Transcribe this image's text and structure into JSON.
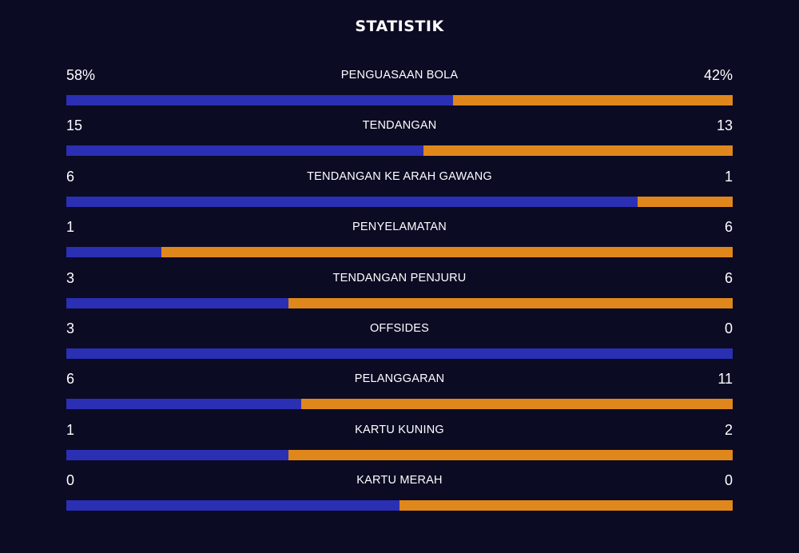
{
  "title": "STATISTIK",
  "colors": {
    "background": "#0b0b24",
    "home_bar": "#2b2fb3",
    "away_bar": "#e0871c"
  },
  "stats": [
    {
      "label": "PENGUASAAN BOLA",
      "home": "58%",
      "away": "42%",
      "home_share": 0.58
    },
    {
      "label": "TENDANGAN",
      "home": "15",
      "away": "13",
      "home_share": 0.536
    },
    {
      "label": "TENDANGAN KE ARAH GAWANG",
      "home": "6",
      "away": "1",
      "home_share": 0.857
    },
    {
      "label": "PENYELAMATAN",
      "home": "1",
      "away": "6",
      "home_share": 0.143
    },
    {
      "label": "TENDANGAN PENJURU",
      "home": "3",
      "away": "6",
      "home_share": 0.333
    },
    {
      "label": "OFFSIDES",
      "home": "3",
      "away": "0",
      "home_share": 1.0
    },
    {
      "label": "PELANGGARAN",
      "home": "6",
      "away": "11",
      "home_share": 0.353
    },
    {
      "label": "KARTU KUNING",
      "home": "1",
      "away": "2",
      "home_share": 0.333
    },
    {
      "label": "KARTU MERAH",
      "home": "0",
      "away": "0",
      "home_share": 0.5
    }
  ]
}
